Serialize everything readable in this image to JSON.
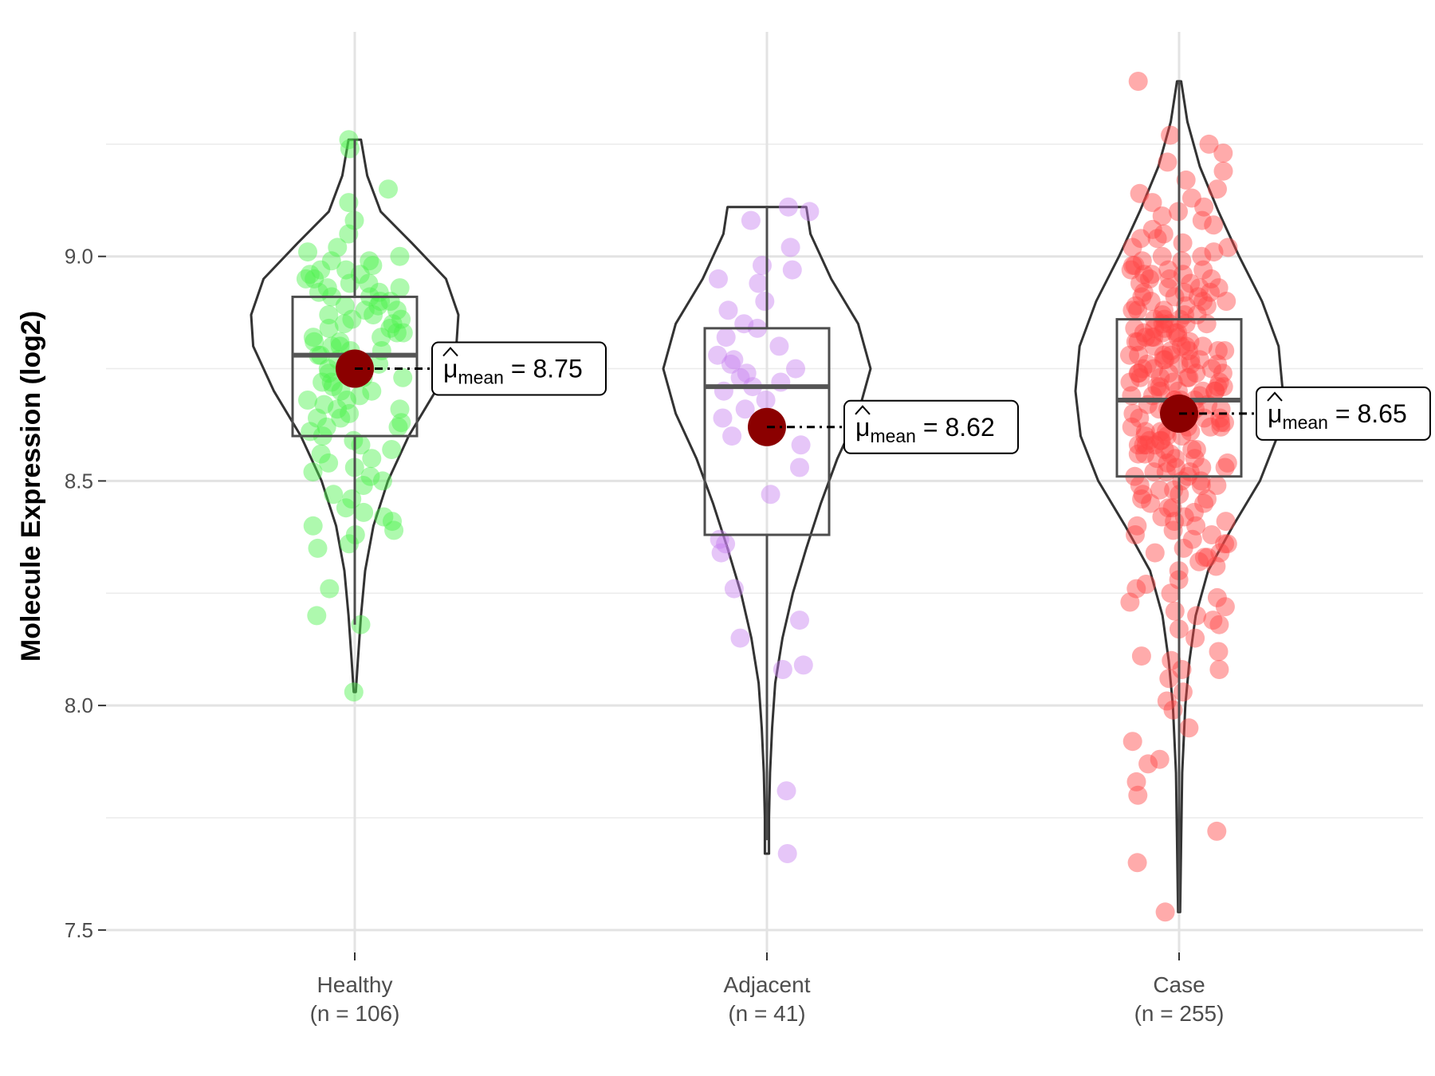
{
  "chart_data": {
    "type": "violin",
    "title": "",
    "xlabel": "",
    "ylabel": "Molecule Expression (log2)",
    "ylim": [
      7.45,
      9.5
    ],
    "yticks": [
      7.5,
      8.0,
      8.5,
      9.0
    ],
    "ytick_labels": [
      "7.5",
      "8.0",
      "8.5",
      "9.0"
    ],
    "grid": true,
    "legend": "none",
    "groups": [
      {
        "name": "Healthy",
        "n_label": "(n = 106)",
        "color": "#4cf24c",
        "min": 8.03,
        "q1": 8.6,
        "median": 8.78,
        "q3": 8.91,
        "max": 9.26,
        "whisker_low": 8.18,
        "whisker_high": 9.26,
        "mean": 8.75,
        "mean_label": "8.75",
        "violin": [
          [
            8.03,
            0.01
          ],
          [
            8.1,
            0.03
          ],
          [
            8.2,
            0.06
          ],
          [
            8.3,
            0.1
          ],
          [
            8.4,
            0.18
          ],
          [
            8.5,
            0.32
          ],
          [
            8.6,
            0.52
          ],
          [
            8.7,
            0.78
          ],
          [
            8.8,
            0.98
          ],
          [
            8.87,
            1.0
          ],
          [
            8.95,
            0.88
          ],
          [
            9.03,
            0.55
          ],
          [
            9.1,
            0.25
          ],
          [
            9.18,
            0.12
          ],
          [
            9.26,
            0.06
          ]
        ],
        "points": [
          8.03,
          8.18,
          8.2,
          8.26,
          8.36,
          8.38,
          8.4,
          8.41,
          8.43,
          8.44,
          8.47,
          8.5,
          8.51,
          8.52,
          8.53,
          8.54,
          8.55,
          8.56,
          8.58,
          8.59,
          8.6,
          8.61,
          8.62,
          8.63,
          8.64,
          8.65,
          8.66,
          8.67,
          8.68,
          8.69,
          8.7,
          8.71,
          8.72,
          8.73,
          8.74,
          8.75,
          8.76,
          8.77,
          8.78,
          8.79,
          8.8,
          8.81,
          8.82,
          8.83,
          8.84,
          8.85,
          8.86,
          8.87,
          8.88,
          8.89,
          8.9,
          8.91,
          8.92,
          8.93,
          8.94,
          8.95,
          8.96,
          8.97,
          8.98,
          8.99,
          9.0,
          9.02,
          9.05,
          9.08,
          9.12,
          9.15,
          9.24,
          9.26,
          8.72,
          8.74,
          8.76,
          8.78,
          8.8,
          8.82,
          8.84,
          8.86,
          8.88,
          8.9,
          8.92,
          8.94,
          8.96,
          8.68,
          8.66,
          8.64,
          8.62,
          8.85,
          8.87,
          8.89,
          8.91,
          8.93,
          8.95,
          8.7,
          8.73,
          8.77,
          8.81,
          8.83,
          8.79,
          8.57,
          8.49,
          8.46,
          8.35,
          8.42,
          8.39,
          8.99,
          9.01,
          8.97
        ]
      },
      {
        "name": "Adjacent",
        "n_label": "(n = 41)",
        "color": "#c780f0",
        "min": 7.67,
        "q1": 8.38,
        "median": 8.71,
        "q3": 8.84,
        "max": 9.11,
        "whisker_low": 7.7,
        "whisker_high": 9.11,
        "mean": 8.62,
        "mean_label": "8.62",
        "violin": [
          [
            7.67,
            0.02
          ],
          [
            7.75,
            0.02
          ],
          [
            7.85,
            0.03
          ],
          [
            7.95,
            0.05
          ],
          [
            8.05,
            0.08
          ],
          [
            8.15,
            0.15
          ],
          [
            8.25,
            0.25
          ],
          [
            8.35,
            0.38
          ],
          [
            8.45,
            0.52
          ],
          [
            8.55,
            0.68
          ],
          [
            8.65,
            0.88
          ],
          [
            8.75,
            1.0
          ],
          [
            8.85,
            0.88
          ],
          [
            8.95,
            0.62
          ],
          [
            9.05,
            0.42
          ],
          [
            9.11,
            0.38
          ]
        ],
        "points": [
          7.67,
          7.81,
          8.08,
          8.09,
          8.15,
          8.19,
          8.26,
          8.34,
          8.36,
          8.37,
          8.47,
          8.53,
          8.58,
          8.6,
          8.62,
          8.64,
          8.66,
          8.68,
          8.7,
          8.71,
          8.73,
          8.74,
          8.75,
          8.76,
          8.77,
          8.78,
          8.8,
          8.82,
          8.84,
          8.88,
          8.9,
          8.94,
          8.95,
          8.97,
          8.98,
          9.02,
          9.08,
          9.1,
          9.11,
          8.72,
          8.85
        ]
      },
      {
        "name": "Case",
        "n_label": "(n = 255)",
        "color": "#ff4444",
        "min": 7.54,
        "q1": 8.51,
        "median": 8.68,
        "q3": 8.86,
        "max": 9.39,
        "whisker_low": 7.54,
        "whisker_high": 9.39,
        "mean": 8.65,
        "mean_label": "8.65",
        "violin": [
          [
            7.54,
            0.01
          ],
          [
            7.7,
            0.02
          ],
          [
            7.85,
            0.03
          ],
          [
            8.0,
            0.06
          ],
          [
            8.1,
            0.1
          ],
          [
            8.2,
            0.16
          ],
          [
            8.3,
            0.28
          ],
          [
            8.4,
            0.52
          ],
          [
            8.5,
            0.78
          ],
          [
            8.6,
            0.95
          ],
          [
            8.7,
            1.0
          ],
          [
            8.8,
            0.96
          ],
          [
            8.9,
            0.8
          ],
          [
            9.0,
            0.58
          ],
          [
            9.1,
            0.38
          ],
          [
            9.2,
            0.2
          ],
          [
            9.3,
            0.08
          ],
          [
            9.39,
            0.02
          ]
        ],
        "points": [
          7.54,
          7.65,
          7.72,
          7.8,
          7.83,
          7.87,
          7.88,
          7.92,
          7.95,
          7.99,
          8.01,
          8.03,
          8.08,
          8.08,
          8.1,
          8.11,
          8.12,
          8.15,
          8.17,
          8.18,
          8.2,
          8.21,
          8.22,
          8.24,
          8.25,
          8.3,
          8.32,
          8.33,
          8.34,
          8.35,
          8.36,
          8.37,
          8.38,
          8.39,
          8.4,
          8.41,
          8.42,
          8.43,
          8.44,
          8.45,
          8.46,
          8.47,
          8.48,
          8.49,
          8.5,
          8.51,
          8.52,
          8.53,
          8.54,
          8.55,
          8.56,
          8.57,
          8.58,
          8.59,
          8.6,
          8.61,
          8.62,
          8.63,
          8.64,
          8.65,
          8.66,
          8.67,
          8.68,
          8.69,
          8.7,
          8.71,
          8.72,
          8.73,
          8.74,
          8.75,
          8.76,
          8.77,
          8.78,
          8.79,
          8.8,
          8.81,
          8.82,
          8.83,
          8.84,
          8.85,
          8.86,
          8.87,
          8.88,
          8.89,
          8.9,
          8.91,
          8.92,
          8.93,
          8.94,
          8.95,
          8.96,
          8.97,
          8.98,
          8.99,
          9.0,
          9.01,
          9.02,
          9.03,
          9.04,
          9.05,
          9.06,
          9.08,
          9.1,
          9.12,
          9.13,
          9.15,
          9.19,
          9.21,
          9.23,
          9.25,
          9.27,
          9.39,
          8.45,
          8.47,
          8.49,
          8.51,
          8.53,
          8.55,
          8.57,
          8.59,
          8.61,
          8.63,
          8.65,
          8.67,
          8.69,
          8.71,
          8.73,
          8.75,
          8.77,
          8.79,
          8.81,
          8.83,
          8.85,
          8.87,
          8.89,
          8.91,
          8.93,
          8.95,
          8.97,
          8.99,
          8.5,
          8.52,
          8.54,
          8.56,
          8.58,
          8.6,
          8.62,
          8.64,
          8.66,
          8.68,
          8.7,
          8.72,
          8.74,
          8.76,
          8.78,
          8.8,
          8.82,
          8.84,
          8.86,
          8.88,
          8.9,
          8.92,
          8.94,
          8.96,
          8.98,
          8.55,
          8.6,
          8.65,
          8.7,
          8.75,
          8.8,
          8.85,
          8.9,
          8.62,
          8.66,
          8.7,
          8.74,
          8.78,
          8.82,
          8.68,
          8.72,
          8.76,
          8.64,
          8.58,
          8.48,
          8.44,
          8.4,
          8.36,
          8.31,
          8.27,
          8.23,
          8.19,
          9.02,
          9.07,
          9.11,
          9.17,
          8.64,
          8.69,
          8.73,
          8.77,
          8.81,
          8.57,
          8.61,
          8.66,
          8.71,
          8.79,
          8.83,
          8.87,
          8.93,
          8.97,
          8.52,
          8.46,
          8.42,
          8.38,
          8.34,
          8.28,
          8.63,
          8.67,
          8.74,
          8.78,
          8.84,
          8.88,
          8.92,
          8.96,
          9.0,
          9.04,
          9.09,
          9.14,
          8.56,
          8.59,
          8.62,
          8.65,
          8.68,
          8.71,
          8.74,
          8.77,
          8.8,
          8.83,
          8.86,
          8.89,
          8.58,
          8.61,
          8.64,
          8.67,
          8.7,
          8.73,
          8.76,
          8.79,
          8.82,
          8.85,
          8.91,
          8.95,
          8.53,
          8.49,
          8.41,
          8.33,
          8.26,
          8.06
        ]
      }
    ]
  }
}
